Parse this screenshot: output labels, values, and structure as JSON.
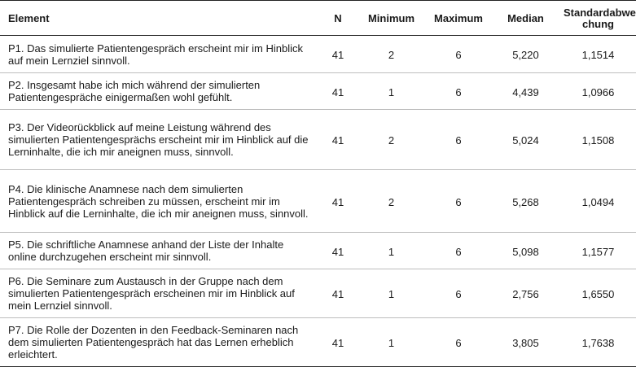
{
  "table": {
    "headers": {
      "element": "Element",
      "n": "N",
      "minimum": "Minimum",
      "maximum": "Maximum",
      "median": "Median",
      "sd_line1": "Standardabwei",
      "sd_line2": "chung"
    },
    "rows": [
      {
        "element": "P1. Das simulierte Patientengespräch erscheint mir im Hinblick auf mein Lernziel sinnvoll.",
        "n": "41",
        "minimum": "2",
        "maximum": "6",
        "median": "5,220",
        "sd": "1,1514"
      },
      {
        "element": "P2. Insgesamt habe ich mich während der simulierten Patientengespräche einigermaßen wohl gefühlt.",
        "n": "41",
        "minimum": "1",
        "maximum": "6",
        "median": "4,439",
        "sd": "1,0966"
      },
      {
        "element": "P3. Der Videorückblick auf meine Leistung während des simulierten Patientengesprächs erscheint mir im Hinblick auf die Lerninhalte, die ich mir aneignen muss, sinnvoll.",
        "n": "41",
        "minimum": "2",
        "maximum": "6",
        "median": "5,024",
        "sd": "1,1508"
      },
      {
        "element": "P4. Die klinische Anamnese nach dem simulierten Patientengespräch schreiben zu müssen, erscheint mir im Hinblick auf die Lerninhalte, die ich mir aneignen muss, sinnvoll.",
        "n": "41",
        "minimum": "2",
        "maximum": "6",
        "median": "5,268",
        "sd": "1,0494"
      },
      {
        "element": "P5. Die schriftliche Anamnese anhand der Liste der Inhalte online durchzugehen erscheint mir sinnvoll.",
        "n": "41",
        "minimum": "1",
        "maximum": "6",
        "median": "5,098",
        "sd": "1,1577"
      },
      {
        "element": "P6. Die Seminare zum Austausch in der Gruppe nach dem simulierten Patientengespräch erscheinen mir im Hinblick auf mein Lernziel sinnvoll.",
        "n": "41",
        "minimum": "1",
        "maximum": "6",
        "median": "2,756",
        "sd": "1,6550"
      },
      {
        "element": "P7. Die Rolle der Dozenten in den Feedback-Seminaren nach dem simulierten Patientengespräch hat das Lernen erheblich erleichtert.",
        "n": "41",
        "minimum": "1",
        "maximum": "6",
        "median": "3,805",
        "sd": "1,7638"
      }
    ]
  }
}
